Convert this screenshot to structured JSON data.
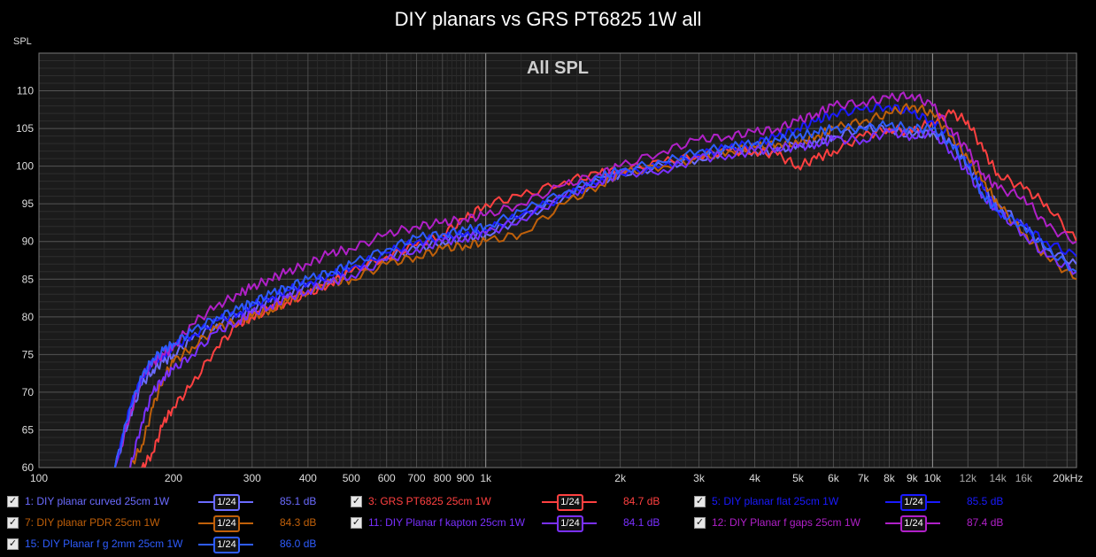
{
  "title": "DIY planars vs GRS PT6825 1W all",
  "y_unit_label": "SPL",
  "legend_entries": [
    {
      "id": "c1",
      "check": "✓",
      "name": "1: DIY planar curved 25cm 1W",
      "smoothing": "1/24",
      "level": "85.1 dB",
      "color": "#6b6bff"
    },
    {
      "id": "c3",
      "check": "✓",
      "name": "3: GRS PT6825 25cm 1W",
      "smoothing": "1/24",
      "level": "84.7 dB",
      "color": "#ff4040"
    },
    {
      "id": "c5",
      "check": "✓",
      "name": "5: DIY planar flat 25cm 1W",
      "smoothing": "1/24",
      "level": "85.5 dB",
      "color": "#1a1aff"
    },
    {
      "id": "c7",
      "check": "✓",
      "name": "7: DIY planar PDR 25cm 1W",
      "smoothing": "1/24",
      "level": "84.3 dB",
      "color": "#c0600a"
    },
    {
      "id": "c11",
      "check": "✓",
      "name": "11: DIY Planar f kapton 25cm 1W",
      "smoothing": "1/24",
      "level": "84.1 dB",
      "color": "#7a30ff"
    },
    {
      "id": "c12",
      "check": "✓",
      "name": "12: DIY Planar f gaps 25cm 1W",
      "smoothing": "1/24",
      "level": "87.4 dB",
      "color": "#b020c8"
    },
    {
      "id": "c15",
      "check": "✓",
      "name": "15: DIY Planar f g 2mm 25cm 1W",
      "smoothing": "1/24",
      "level": "86.0 dB",
      "color": "#2e5cff"
    }
  ],
  "chart_data": {
    "type": "line",
    "title": "DIY planars vs GRS PT6825 1W all",
    "subtitle": "All SPL",
    "ylabel": "SPL",
    "xlabel": "",
    "x_scale": "log",
    "xlim": [
      100,
      21000
    ],
    "ylim": [
      60,
      115
    ],
    "grid": true,
    "y_ticks": [
      60,
      65,
      70,
      75,
      80,
      85,
      90,
      95,
      100,
      105,
      110
    ],
    "x_ticks": [
      {
        "value": 100,
        "label": "100"
      },
      {
        "value": 200,
        "label": "200"
      },
      {
        "value": 300,
        "label": "300"
      },
      {
        "value": 400,
        "label": "400"
      },
      {
        "value": 500,
        "label": "500"
      },
      {
        "value": 600,
        "label": "600"
      },
      {
        "value": 700,
        "label": "700"
      },
      {
        "value": 800,
        "label": "800"
      },
      {
        "value": 900,
        "label": "900"
      },
      {
        "value": 1000,
        "label": "1k"
      },
      {
        "value": 2000,
        "label": "2k"
      },
      {
        "value": 3000,
        "label": "3k"
      },
      {
        "value": 4000,
        "label": "4k"
      },
      {
        "value": 5000,
        "label": "5k"
      },
      {
        "value": 6000,
        "label": "6k"
      },
      {
        "value": 7000,
        "label": "7k"
      },
      {
        "value": 8000,
        "label": "8k"
      },
      {
        "value": 9000,
        "label": "9k"
      },
      {
        "value": 10000,
        "label": "10k"
      },
      {
        "value": 12000,
        "label": "12k"
      },
      {
        "value": 14000,
        "label": "14k"
      },
      {
        "value": 16000,
        "label": "16k"
      },
      {
        "value": 20000,
        "label": "20kHz"
      }
    ],
    "x": [
      148,
      160,
      170,
      180,
      190,
      200,
      220,
      250,
      280,
      300,
      330,
      360,
      400,
      450,
      500,
      600,
      700,
      800,
      900,
      1000,
      1200,
      1500,
      1800,
      2000,
      2500,
      3000,
      3500,
      4000,
      4500,
      5000,
      5500,
      6000,
      7000,
      8000,
      9000,
      10000,
      11000,
      12000,
      13000,
      14000,
      16000,
      18000,
      21000
    ],
    "series": [
      {
        "name": "1: DIY planar curved 25cm 1W",
        "color": "#6b6bff",
        "values": [
          60,
          67,
          71,
          73,
          74,
          75,
          77,
          79,
          80,
          81,
          82,
          83,
          84,
          85,
          86,
          88,
          89,
          90,
          90.5,
          91,
          93,
          96,
          98,
          99,
          100,
          101,
          102,
          102,
          102,
          103,
          103,
          104,
          105,
          105,
          104,
          104.5,
          103,
          100,
          97,
          95,
          92,
          89,
          87
        ]
      },
      {
        "name": "3: GRS PT6825 25cm 1W",
        "color": "#ff4040",
        "values": [
          null,
          null,
          60,
          62,
          66,
          68,
          71,
          76,
          79,
          80,
          81,
          82,
          83,
          84.5,
          86,
          88,
          89.5,
          91,
          93,
          95,
          96,
          98,
          99,
          99.5,
          100.5,
          101.5,
          102,
          102,
          101.5,
          100,
          101,
          102,
          104,
          105,
          104.5,
          106,
          107,
          106,
          102,
          99,
          97,
          95,
          90
        ]
      },
      {
        "name": "5: DIY planar flat 25cm 1W",
        "color": "#1a1aff",
        "values": [
          60,
          68,
          72,
          74,
          75,
          76,
          77.5,
          79.5,
          80.5,
          81.5,
          82.5,
          83.5,
          84.5,
          85.5,
          86.5,
          88.5,
          90,
          90.5,
          91,
          91.5,
          93.5,
          96,
          98,
          99,
          100,
          101.5,
          102.5,
          103,
          104,
          105,
          106,
          107,
          107.5,
          108,
          107,
          106,
          104,
          101,
          97,
          94,
          92,
          90,
          88
        ]
      },
      {
        "name": "7: DIY planar PDR 25cm 1W",
        "color": "#c0600a",
        "values": [
          null,
          60,
          63,
          68,
          72,
          74,
          76,
          78.5,
          79.5,
          80,
          81,
          82,
          83.5,
          84.5,
          85,
          87,
          88,
          89,
          89.5,
          90,
          91,
          95,
          97.5,
          99,
          100,
          101,
          102,
          102.5,
          103,
          103,
          104,
          105,
          106,
          107,
          108,
          107,
          104,
          101,
          98,
          95,
          91,
          88,
          85
        ]
      },
      {
        "name": "11: DIY Planar f kapton 25cm 1W",
        "color": "#7a30ff",
        "values": [
          null,
          60,
          66,
          70,
          72,
          73,
          75,
          78,
          79.5,
          80.5,
          81.5,
          82.5,
          83.5,
          84.5,
          85.5,
          87.5,
          89,
          90,
          90.5,
          91,
          93,
          96,
          98,
          99,
          99.5,
          101,
          101.5,
          102,
          102.5,
          102.5,
          103,
          103.5,
          103.5,
          104.5,
          104,
          104.5,
          102,
          99,
          96,
          94,
          91,
          88,
          86
        ]
      },
      {
        "name": "12: DIY Planar f gaps 25cm 1W",
        "color": "#b020c8",
        "values": [
          60,
          67,
          72,
          74,
          75,
          76,
          79,
          81.5,
          83,
          84,
          85,
          86,
          87,
          88.5,
          89,
          91,
          92,
          92.5,
          93,
          93.5,
          95,
          97.5,
          99,
          100,
          102,
          103.5,
          104,
          104.5,
          105,
          106,
          107,
          108,
          108.5,
          109,
          109.5,
          108,
          105,
          102,
          99,
          97,
          96,
          92,
          90
        ]
      },
      {
        "name": "15: DIY Planar f g 2mm 25cm 1W",
        "color": "#2e5cff",
        "values": [
          60,
          68,
          72,
          74.5,
          75.5,
          76.5,
          78,
          80,
          81,
          82,
          83,
          84,
          85,
          86,
          87,
          89,
          90.5,
          91,
          91.5,
          92,
          94,
          96.5,
          98.5,
          99.5,
          100.5,
          102,
          102.5,
          103,
          103.5,
          104,
          104.5,
          105,
          105,
          105.5,
          105,
          105,
          103,
          100,
          96,
          94,
          92,
          89,
          86
        ]
      }
    ]
  }
}
